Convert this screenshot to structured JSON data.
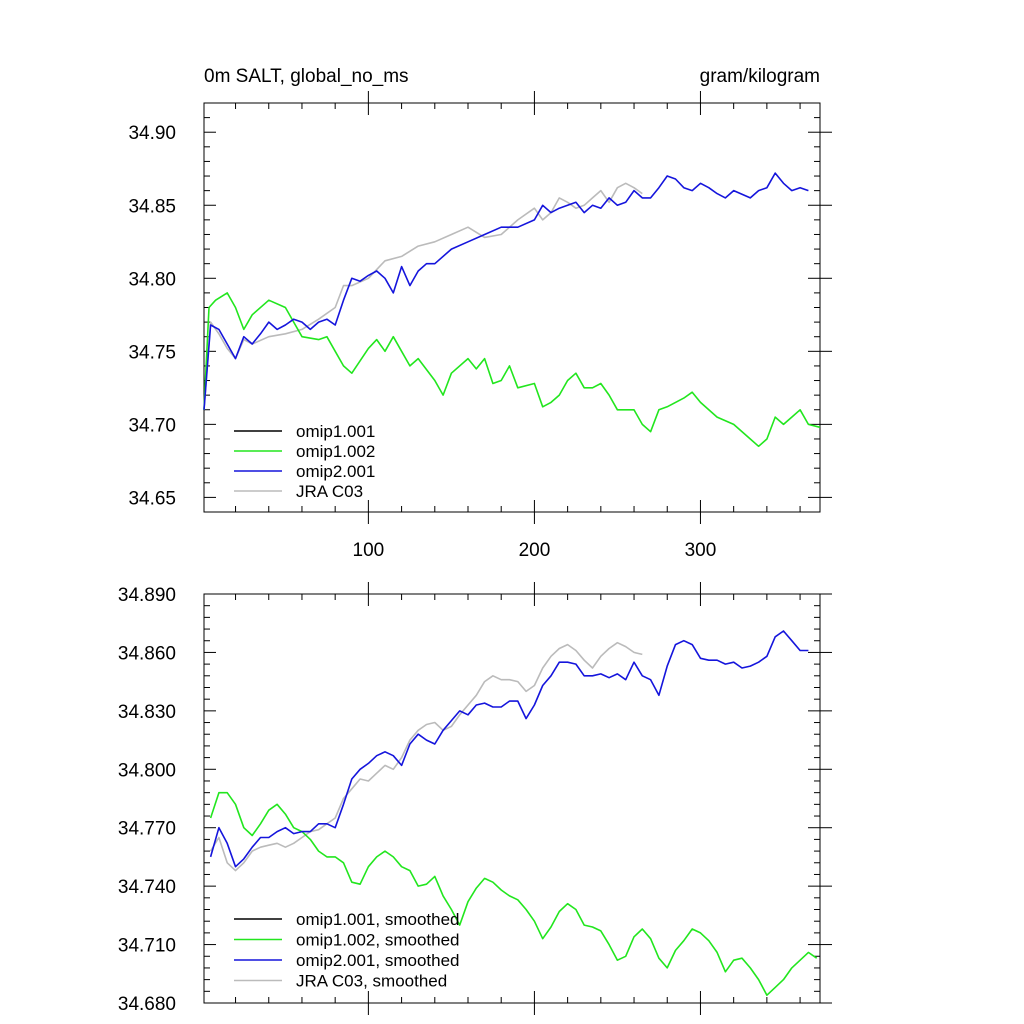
{
  "chart_data": [
    {
      "type": "line",
      "title": "0m SALT, global_no_ms",
      "units": "gram/kilogram",
      "xlim": [
        1,
        372
      ],
      "ylim": [
        34.64,
        34.92
      ],
      "xticks": [
        100,
        200,
        300
      ],
      "xtick_labels": [
        "100",
        "200",
        "300"
      ],
      "yticks": [
        34.65,
        34.7,
        34.75,
        34.8,
        34.85,
        34.9
      ],
      "ytick_labels": [
        "34.65",
        "34.70",
        "34.75",
        "34.80",
        "34.85",
        "34.90"
      ],
      "grid": false,
      "legend_position": "bottom-left",
      "series": [
        {
          "name": "omip1.001",
          "color": "#000000",
          "x": [],
          "y": []
        },
        {
          "name": "omip1.002",
          "color": "#22e61e",
          "x": [
            1,
            4,
            8,
            15,
            20,
            25,
            30,
            40,
            50,
            55,
            60,
            70,
            75,
            80,
            85,
            90,
            100,
            105,
            110,
            115,
            120,
            125,
            130,
            140,
            145,
            150,
            160,
            165,
            170,
            175,
            180,
            185,
            190,
            200,
            205,
            210,
            215,
            220,
            225,
            230,
            235,
            240,
            245,
            250,
            260,
            265,
            270,
            275,
            280,
            285,
            290,
            295,
            300,
            310,
            320,
            330,
            335,
            340,
            345,
            350,
            355,
            360,
            365,
            372
          ],
          "y": [
            34.71,
            34.78,
            34.785,
            34.79,
            34.78,
            34.765,
            34.775,
            34.785,
            34.78,
            34.77,
            34.76,
            34.758,
            34.76,
            34.75,
            34.74,
            34.735,
            34.752,
            34.758,
            34.75,
            34.76,
            34.75,
            34.74,
            34.745,
            34.73,
            34.72,
            34.735,
            34.745,
            34.738,
            34.745,
            34.728,
            34.73,
            34.74,
            34.725,
            34.728,
            34.712,
            34.715,
            34.72,
            34.73,
            34.735,
            34.725,
            34.725,
            34.728,
            34.72,
            34.71,
            34.71,
            34.7,
            34.695,
            34.71,
            34.712,
            34.715,
            34.718,
            34.722,
            34.715,
            34.705,
            34.7,
            34.69,
            34.685,
            34.69,
            34.705,
            34.7,
            34.705,
            34.71,
            34.7,
            34.698
          ]
        },
        {
          "name": "omip2.001",
          "color": "#1515dc",
          "x": [
            1,
            5,
            10,
            15,
            20,
            25,
            30,
            35,
            40,
            45,
            50,
            55,
            60,
            65,
            70,
            75,
            80,
            85,
            90,
            95,
            100,
            105,
            110,
            115,
            120,
            125,
            130,
            135,
            140,
            150,
            160,
            170,
            180,
            190,
            200,
            205,
            210,
            215,
            220,
            225,
            230,
            235,
            240,
            245,
            250,
            255,
            260,
            265,
            270,
            275,
            280,
            285,
            290,
            295,
            300,
            305,
            310,
            315,
            320,
            330,
            335,
            340,
            345,
            350,
            355,
            360,
            365
          ],
          "y": [
            34.71,
            34.768,
            34.765,
            34.755,
            34.745,
            34.76,
            34.755,
            34.762,
            34.77,
            34.765,
            34.768,
            34.772,
            34.77,
            34.765,
            34.77,
            34.772,
            34.768,
            34.785,
            34.8,
            34.798,
            34.802,
            34.805,
            34.8,
            34.79,
            34.808,
            34.795,
            34.805,
            34.81,
            34.81,
            34.82,
            34.825,
            34.83,
            34.835,
            34.835,
            34.84,
            34.85,
            34.845,
            34.848,
            34.85,
            34.852,
            34.845,
            34.85,
            34.848,
            34.855,
            34.85,
            34.852,
            34.86,
            34.855,
            34.855,
            34.862,
            34.87,
            34.868,
            34.862,
            34.86,
            34.865,
            34.862,
            34.858,
            34.855,
            34.86,
            34.855,
            34.86,
            34.862,
            34.872,
            34.865,
            34.86,
            34.862,
            34.86
          ]
        },
        {
          "name": "JRA C03",
          "color": "#bbbbbb",
          "x": [
            1,
            5,
            10,
            15,
            20,
            25,
            30,
            40,
            50,
            60,
            70,
            80,
            85,
            90,
            100,
            110,
            120,
            130,
            140,
            150,
            160,
            170,
            180,
            190,
            200,
            205,
            210,
            215,
            220,
            225,
            230,
            235,
            240,
            245,
            250,
            255,
            260,
            265
          ],
          "y": [
            34.71,
            34.77,
            34.762,
            34.752,
            34.745,
            34.758,
            34.755,
            34.76,
            34.762,
            34.765,
            34.772,
            34.78,
            34.795,
            34.795,
            34.8,
            34.812,
            34.815,
            34.822,
            34.825,
            34.83,
            34.835,
            34.828,
            34.83,
            34.84,
            34.848,
            34.84,
            34.845,
            34.855,
            34.852,
            34.848,
            34.85,
            34.855,
            34.86,
            34.852,
            34.862,
            34.865,
            34.862,
            34.858
          ]
        }
      ]
    },
    {
      "type": "line",
      "xlim": [
        1,
        372
      ],
      "ylim": [
        34.68,
        34.89
      ],
      "xticks": [
        100,
        200,
        300
      ],
      "xtick_labels": [],
      "yticks": [
        34.68,
        34.71,
        34.74,
        34.77,
        34.8,
        34.83,
        34.86,
        34.89
      ],
      "ytick_labels": [
        "34.680",
        "34.710",
        "34.740",
        "34.770",
        "34.800",
        "34.830",
        "34.860",
        "34.890"
      ],
      "grid": false,
      "legend_position": "bottom-left",
      "series": [
        {
          "name": "omip1.001, smoothed",
          "color": "#000000",
          "x": [],
          "y": []
        },
        {
          "name": "omip1.002, smoothed",
          "color": "#22e61e",
          "x": [
            5,
            10,
            15,
            20,
            25,
            30,
            35,
            40,
            45,
            50,
            55,
            60,
            65,
            70,
            75,
            80,
            85,
            90,
            95,
            100,
            105,
            110,
            115,
            120,
            125,
            130,
            135,
            140,
            145,
            150,
            155,
            160,
            165,
            170,
            175,
            180,
            185,
            190,
            195,
            200,
            205,
            210,
            215,
            220,
            225,
            230,
            235,
            240,
            245,
            250,
            255,
            260,
            265,
            270,
            275,
            280,
            285,
            290,
            295,
            300,
            305,
            310,
            315,
            320,
            325,
            330,
            335,
            340,
            345,
            350,
            355,
            360,
            365,
            370
          ],
          "y": [
            34.775,
            34.788,
            34.788,
            34.782,
            34.77,
            34.766,
            34.772,
            34.779,
            34.782,
            34.777,
            34.77,
            34.768,
            34.764,
            34.758,
            34.755,
            34.755,
            34.752,
            34.742,
            34.741,
            34.75,
            34.755,
            34.758,
            34.755,
            34.75,
            34.748,
            34.74,
            34.741,
            34.745,
            34.735,
            34.728,
            34.72,
            34.732,
            34.739,
            34.744,
            34.742,
            34.738,
            34.735,
            34.733,
            34.728,
            34.722,
            34.713,
            34.719,
            34.727,
            34.731,
            34.728,
            34.72,
            34.719,
            34.717,
            34.71,
            34.702,
            34.704,
            34.714,
            34.718,
            34.713,
            34.703,
            34.698,
            34.707,
            34.712,
            34.718,
            34.716,
            34.712,
            34.706,
            34.696,
            34.702,
            34.703,
            34.698,
            34.692,
            34.684,
            34.688,
            34.692,
            34.698,
            34.702,
            34.706,
            34.703
          ]
        },
        {
          "name": "omip2.001, smoothed",
          "color": "#1515dc",
          "x": [
            5,
            10,
            15,
            20,
            25,
            30,
            35,
            40,
            45,
            50,
            55,
            60,
            65,
            70,
            75,
            80,
            85,
            90,
            95,
            100,
            105,
            110,
            115,
            120,
            125,
            130,
            135,
            140,
            145,
            150,
            155,
            160,
            165,
            170,
            175,
            180,
            185,
            190,
            195,
            200,
            205,
            210,
            215,
            220,
            225,
            230,
            235,
            240,
            245,
            250,
            255,
            260,
            265,
            270,
            275,
            280,
            285,
            290,
            295,
            300,
            305,
            310,
            315,
            320,
            325,
            330,
            335,
            340,
            345,
            350,
            355,
            360,
            365
          ],
          "y": [
            34.755,
            34.77,
            34.762,
            34.75,
            34.754,
            34.76,
            34.765,
            34.765,
            34.768,
            34.77,
            34.767,
            34.768,
            34.768,
            34.772,
            34.772,
            34.77,
            34.782,
            34.795,
            34.8,
            34.803,
            34.807,
            34.809,
            34.807,
            34.802,
            34.813,
            34.818,
            34.815,
            34.813,
            34.82,
            34.825,
            34.83,
            34.828,
            34.833,
            34.834,
            34.832,
            34.832,
            34.835,
            34.835,
            34.826,
            34.833,
            34.843,
            34.848,
            34.855,
            34.855,
            34.854,
            34.848,
            34.848,
            34.849,
            34.847,
            34.849,
            34.846,
            34.855,
            34.848,
            34.846,
            34.838,
            34.853,
            34.864,
            34.866,
            34.864,
            34.857,
            34.856,
            34.856,
            34.854,
            34.855,
            34.852,
            34.853,
            34.855,
            34.858,
            34.868,
            34.871,
            34.866,
            34.861,
            34.861
          ]
        },
        {
          "name": "JRA C03, smoothed",
          "color": "#bbbbbb",
          "x": [
            5,
            10,
            15,
            20,
            25,
            30,
            35,
            40,
            45,
            50,
            55,
            60,
            65,
            70,
            75,
            80,
            85,
            90,
            95,
            100,
            105,
            110,
            115,
            120,
            125,
            130,
            135,
            140,
            145,
            150,
            155,
            160,
            165,
            170,
            175,
            180,
            185,
            190,
            195,
            200,
            205,
            210,
            215,
            220,
            225,
            230,
            235,
            240,
            245,
            250,
            255,
            260,
            265
          ],
          "y": [
            34.758,
            34.765,
            34.752,
            34.748,
            34.752,
            34.758,
            34.76,
            34.761,
            34.762,
            34.76,
            34.762,
            34.765,
            34.768,
            34.769,
            34.772,
            34.775,
            34.785,
            34.79,
            34.795,
            34.794,
            34.798,
            34.802,
            34.8,
            34.806,
            34.815,
            34.82,
            34.823,
            34.824,
            34.82,
            34.822,
            34.828,
            34.833,
            34.838,
            34.845,
            34.848,
            34.846,
            34.846,
            34.845,
            34.84,
            34.843,
            34.852,
            34.858,
            34.862,
            34.864,
            34.861,
            34.856,
            34.852,
            34.858,
            34.862,
            34.865,
            34.863,
            34.86,
            34.859
          ]
        }
      ]
    }
  ]
}
